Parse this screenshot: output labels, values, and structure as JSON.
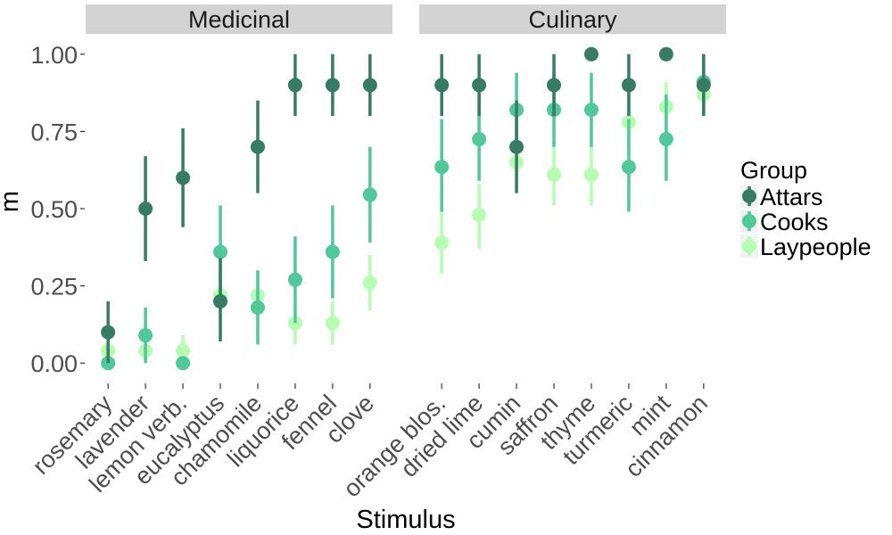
{
  "chart_data": {
    "type": "scatter",
    "subtype": "point-range, faceted",
    "xlabel": "Stimulus",
    "ylabel": "m",
    "ylim": [
      -0.06,
      1.06
    ],
    "yticks": [
      "0.00",
      "0.25",
      "0.50",
      "0.75",
      "1.00"
    ],
    "ytick_values": [
      0,
      0.25,
      0.5,
      0.75,
      1.0
    ],
    "grid": false,
    "legend": {
      "title": "Group",
      "placement": "right",
      "entries": [
        {
          "name": "Attars",
          "color": "#367c63"
        },
        {
          "name": "Cooks",
          "color": "#4fc89a"
        },
        {
          "name": "Laypeople",
          "color": "#b5fdb1"
        }
      ]
    },
    "facets": [
      {
        "title": "Medicinal",
        "categories": [
          "rosemary",
          "lavender",
          "lemon verb.",
          "eucalyptus",
          "chamomile",
          "liquorice",
          "fennel",
          "clove"
        ],
        "series": [
          {
            "name": "Attars",
            "values": [
              0.1,
              0.5,
              0.6,
              0.2,
              0.7,
              0.9,
              0.9,
              0.9
            ],
            "lower": [
              0.0,
              0.33,
              0.44,
              0.07,
              0.55,
              0.8,
              0.8,
              0.8
            ],
            "upper": [
              0.2,
              0.67,
              0.76,
              0.34,
              0.85,
              1.0,
              1.0,
              1.0
            ]
          },
          {
            "name": "Cooks",
            "values": [
              0.0,
              0.09,
              0.0,
              0.36,
              0.18,
              0.27,
              0.36,
              0.545
            ],
            "lower": [
              0.0,
              0.0,
              0.0,
              0.21,
              0.06,
              0.13,
              0.21,
              0.39
            ],
            "upper": [
              0.0,
              0.18,
              0.0,
              0.51,
              0.3,
              0.41,
              0.51,
              0.7
            ]
          },
          {
            "name": "Laypeople",
            "values": [
              0.04,
              0.04,
              0.04,
              0.22,
              0.22,
              0.13,
              0.13,
              0.26
            ],
            "lower": [
              0.0,
              0.0,
              0.0,
              0.13,
              0.13,
              0.06,
              0.06,
              0.17
            ],
            "upper": [
              0.09,
              0.09,
              0.09,
              0.3,
              0.3,
              0.2,
              0.2,
              0.35
            ]
          }
        ]
      },
      {
        "title": "Culinary",
        "categories": [
          "orange blos.",
          "dried lime",
          "cumin",
          "saffron",
          "thyme",
          "turmeric",
          "mint",
          "cinnamon"
        ],
        "series": [
          {
            "name": "Attars",
            "values": [
              0.9,
              0.9,
              0.7,
              0.9,
              1.0,
              0.9,
              1.0,
              0.9
            ],
            "lower": [
              0.8,
              0.8,
              0.55,
              0.8,
              1.0,
              0.8,
              1.0,
              0.8
            ],
            "upper": [
              1.0,
              1.0,
              0.85,
              1.0,
              1.0,
              1.0,
              1.0,
              1.0
            ]
          },
          {
            "name": "Cooks",
            "values": [
              0.635,
              0.725,
              0.82,
              0.82,
              0.82,
              0.635,
              0.725,
              0.91
            ],
            "lower": [
              0.49,
              0.59,
              0.7,
              0.7,
              0.7,
              0.49,
              0.59,
              0.82
            ],
            "upper": [
              0.79,
              0.87,
              0.94,
              0.94,
              0.94,
              0.79,
              0.87,
              1.0
            ]
          },
          {
            "name": "Laypeople",
            "values": [
              0.39,
              0.48,
              0.65,
              0.61,
              0.61,
              0.78,
              0.83,
              0.87
            ],
            "lower": [
              0.29,
              0.37,
              0.57,
              0.51,
              0.51,
              0.69,
              0.74,
              0.8
            ],
            "upper": [
              0.49,
              0.58,
              0.74,
              0.71,
              0.71,
              0.87,
              0.91,
              0.94
            ]
          }
        ]
      }
    ]
  }
}
